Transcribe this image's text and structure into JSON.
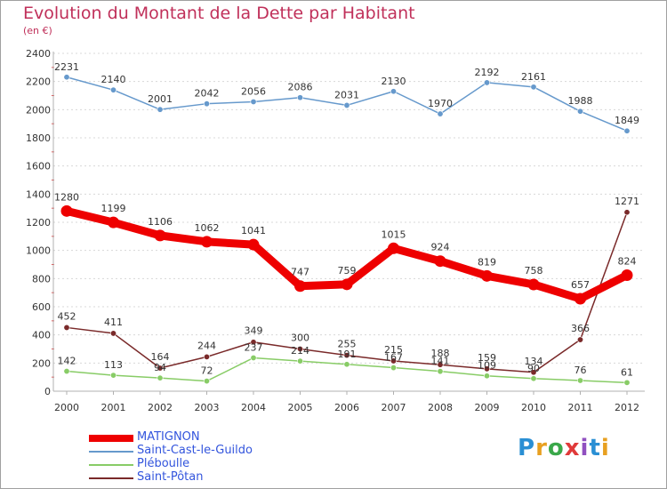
{
  "title": "Evolution du Montant de la Dette par Habitant",
  "unit": "(en €)",
  "logo": {
    "text": "ProXiti",
    "letters": [
      "P",
      "r",
      "o",
      "x",
      "i",
      "t",
      "i"
    ],
    "colors": [
      "#2a8fd4",
      "#e8a020",
      "#3aa84a",
      "#e03a3a",
      "#9050c0",
      "#2a8fd4",
      "#e8a020"
    ]
  },
  "chart_data": {
    "type": "line",
    "title": "Evolution du Montant de la Dette par Habitant",
    "ylabel": "(en €)",
    "categories": [
      "2000",
      "2001",
      "2002",
      "2003",
      "2004",
      "2005",
      "2006",
      "2007",
      "2008",
      "2009",
      "2010",
      "2011",
      "2012"
    ],
    "ylim": [
      0,
      2400
    ],
    "yticks": [
      0,
      200,
      400,
      600,
      800,
      1000,
      1200,
      1400,
      1600,
      1800,
      2000,
      2200,
      2400
    ],
    "grid": "dotted-horizontal",
    "legend_position": "bottom-left",
    "series": [
      {
        "name": "MATIGNON",
        "color": "#ee0000",
        "values": [
          1280,
          1199,
          1106,
          1062,
          1041,
          747,
          759,
          1015,
          924,
          819,
          758,
          657,
          824
        ]
      },
      {
        "name": "Saint-Cast-le-Guildo",
        "color": "#6699cc",
        "values": [
          2231,
          2140,
          2001,
          2042,
          2056,
          2086,
          2031,
          2130,
          1970,
          2192,
          2161,
          1988,
          1849
        ]
      },
      {
        "name": "Pléboulle",
        "color": "#88cc66",
        "values": [
          142,
          113,
          94,
          72,
          237,
          214,
          191,
          167,
          141,
          109,
          90,
          76,
          61
        ]
      },
      {
        "name": "Saint-Pôtan",
        "color": "#7a2a2a",
        "values": [
          452,
          411,
          164,
          244,
          349,
          300,
          255,
          215,
          188,
          159,
          134,
          366,
          1271
        ]
      }
    ]
  }
}
